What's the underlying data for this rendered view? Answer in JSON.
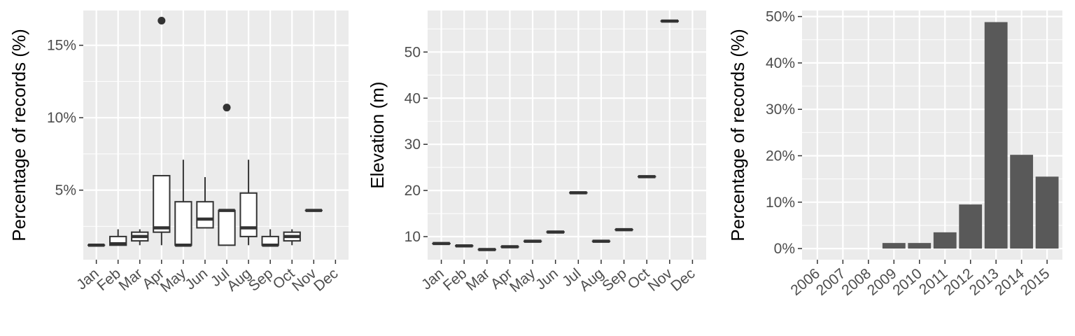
{
  "colors": {
    "panel_background": "#ebebeb",
    "grid": "#ffffff",
    "box_line": "#333333",
    "box_fill": "#ffffff",
    "bar_fill": "#595959",
    "tick_text": "#4d4d4d"
  },
  "chart_data": [
    {
      "type": "boxplot",
      "xlabel": "",
      "ylabel": "Percentage of records (%)",
      "categories": [
        "Jan",
        "Feb",
        "Mar",
        "Apr",
        "May",
        "Jun",
        "Jul",
        "Aug",
        "Sep",
        "Oct",
        "Nov",
        "Dec"
      ],
      "y_ticks": [
        5,
        10,
        15
      ],
      "y_tick_labels": [
        "5%",
        "10%",
        "15%"
      ],
      "ylim": [
        0.2,
        17.4
      ],
      "grid": true,
      "boxes": [
        {
          "category": "Jan",
          "lower_whisker": 1.2,
          "q1": 1.2,
          "median": 1.2,
          "q3": 1.2,
          "upper_whisker": 1.2,
          "outliers": []
        },
        {
          "category": "Feb",
          "lower_whisker": 1.2,
          "q1": 1.2,
          "median": 1.3,
          "q3": 1.8,
          "upper_whisker": 2.3,
          "outliers": []
        },
        {
          "category": "Mar",
          "lower_whisker": 1.2,
          "q1": 1.5,
          "median": 1.8,
          "q3": 2.1,
          "upper_whisker": 2.3,
          "outliers": []
        },
        {
          "category": "Apr",
          "lower_whisker": 1.2,
          "q1": 2.1,
          "median": 2.4,
          "q3": 6.0,
          "upper_whisker": 6.0,
          "outliers": [
            16.7
          ]
        },
        {
          "category": "May",
          "lower_whisker": 1.2,
          "q1": 1.2,
          "median": 1.2,
          "q3": 4.2,
          "upper_whisker": 7.1,
          "outliers": []
        },
        {
          "category": "Jun",
          "lower_whisker": 2.4,
          "q1": 2.4,
          "median": 3.0,
          "q3": 4.2,
          "upper_whisker": 5.9,
          "outliers": []
        },
        {
          "category": "Jul",
          "lower_whisker": 1.2,
          "q1": 1.2,
          "median": 3.6,
          "q3": 3.6,
          "upper_whisker": 3.6,
          "outliers": [
            10.7
          ]
        },
        {
          "category": "Aug",
          "lower_whisker": 1.2,
          "q1": 1.8,
          "median": 2.4,
          "q3": 4.8,
          "upper_whisker": 7.1,
          "outliers": []
        },
        {
          "category": "Sep",
          "lower_whisker": 1.2,
          "q1": 1.2,
          "median": 1.2,
          "q3": 1.8,
          "upper_whisker": 2.3,
          "outliers": []
        },
        {
          "category": "Oct",
          "lower_whisker": 1.2,
          "q1": 1.5,
          "median": 1.8,
          "q3": 2.1,
          "upper_whisker": 2.3,
          "outliers": []
        },
        {
          "category": "Nov",
          "lower_whisker": 3.6,
          "q1": 3.6,
          "median": 3.6,
          "q3": 3.6,
          "upper_whisker": 3.6,
          "outliers": []
        }
      ]
    },
    {
      "type": "boxplot",
      "xlabel": "",
      "ylabel": "Elevation (m)",
      "categories": [
        "Jan",
        "Feb",
        "Mar",
        "Apr",
        "May",
        "Jun",
        "Jul",
        "Aug",
        "Sep",
        "Oct",
        "Nov",
        "Dec"
      ],
      "y_ticks": [
        10,
        20,
        30,
        40,
        50
      ],
      "y_tick_labels": [
        "10",
        "20",
        "30",
        "40",
        "50"
      ],
      "ylim": [
        5,
        59
      ],
      "grid": true,
      "boxes": [
        {
          "category": "Jan",
          "lower_whisker": 8.5,
          "q1": 8.5,
          "median": 8.5,
          "q3": 8.5,
          "upper_whisker": 8.5,
          "outliers": []
        },
        {
          "category": "Feb",
          "lower_whisker": 8.0,
          "q1": 8.0,
          "median": 8.0,
          "q3": 8.0,
          "upper_whisker": 8.0,
          "outliers": []
        },
        {
          "category": "Mar",
          "lower_whisker": 7.2,
          "q1": 7.2,
          "median": 7.2,
          "q3": 7.2,
          "upper_whisker": 7.2,
          "outliers": []
        },
        {
          "category": "Apr",
          "lower_whisker": 7.8,
          "q1": 7.8,
          "median": 7.8,
          "q3": 7.8,
          "upper_whisker": 7.8,
          "outliers": []
        },
        {
          "category": "May",
          "lower_whisker": 9.0,
          "q1": 9.0,
          "median": 9.0,
          "q3": 9.0,
          "upper_whisker": 9.0,
          "outliers": []
        },
        {
          "category": "Jun",
          "lower_whisker": 11.0,
          "q1": 11.0,
          "median": 11.0,
          "q3": 11.0,
          "upper_whisker": 11.0,
          "outliers": []
        },
        {
          "category": "Jul",
          "lower_whisker": 19.5,
          "q1": 19.5,
          "median": 19.5,
          "q3": 19.5,
          "upper_whisker": 19.5,
          "outliers": []
        },
        {
          "category": "Aug",
          "lower_whisker": 9.0,
          "q1": 9.0,
          "median": 9.0,
          "q3": 9.0,
          "upper_whisker": 9.0,
          "outliers": []
        },
        {
          "category": "Sep",
          "lower_whisker": 11.5,
          "q1": 11.5,
          "median": 11.5,
          "q3": 11.5,
          "upper_whisker": 11.5,
          "outliers": []
        },
        {
          "category": "Oct",
          "lower_whisker": 23.0,
          "q1": 23.0,
          "median": 23.0,
          "q3": 23.0,
          "upper_whisker": 23.0,
          "outliers": []
        },
        {
          "category": "Nov",
          "lower_whisker": 56.7,
          "q1": 56.7,
          "median": 56.7,
          "q3": 56.7,
          "upper_whisker": 56.7,
          "outliers": []
        }
      ]
    },
    {
      "type": "bar",
      "xlabel": "",
      "ylabel": "Percentage of records (%)",
      "categories": [
        "2006",
        "2007",
        "2008",
        "2009",
        "2010",
        "2011",
        "2012",
        "2013",
        "2014",
        "2015"
      ],
      "values": [
        0,
        0,
        0,
        1.2,
        1.2,
        3.5,
        9.5,
        48.8,
        20.2,
        15.5
      ],
      "y_ticks": [
        0,
        10,
        20,
        30,
        40,
        50
      ],
      "y_tick_labels": [
        "0%",
        "10%",
        "20%",
        "30%",
        "40%",
        "50%"
      ],
      "ylim": [
        -2.4,
        51.3
      ],
      "grid": true
    }
  ]
}
